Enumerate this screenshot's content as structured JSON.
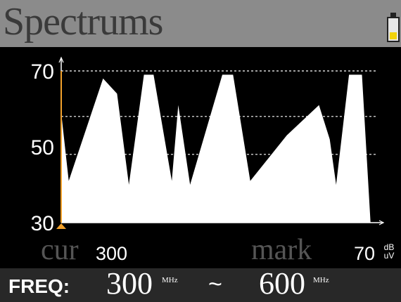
{
  "header": {
    "title": "Spectrums",
    "battery_icon": "battery-low-icon",
    "battery_level": 0.3
  },
  "chart_data": {
    "type": "area",
    "ylim": [
      30,
      70
    ],
    "yticks": [
      "70",
      "50",
      "30"
    ],
    "xlim": [
      300,
      600
    ],
    "grid": "dashed",
    "grid_levels": [
      70,
      58,
      48
    ],
    "marker_x": 300,
    "x": [
      300,
      307,
      339,
      352,
      363,
      377,
      386,
      403,
      409,
      420,
      450,
      460,
      476,
      510,
      540,
      550,
      556,
      568,
      580,
      588,
      595
    ],
    "y": [
      59,
      41,
      68,
      64,
      40,
      69,
      69,
      41,
      61,
      40,
      69,
      69,
      41,
      53,
      61,
      52,
      40,
      69,
      69,
      30,
      30
    ],
    "colors": {
      "fill": "#ffffff",
      "background": "#000000",
      "axis": "#ffffff",
      "marker": "#f2a12b"
    }
  },
  "status": {
    "cur_label": "cur",
    "cur_value": "300",
    "mark_label": "mark",
    "mark_value": "70",
    "mark_unit_top": "dB",
    "mark_unit_bottom": "uV"
  },
  "footer": {
    "freq_label": "FREQ:",
    "start_value": "300",
    "start_unit": "MHz",
    "separator": "~",
    "end_value": "600",
    "end_unit": "MHz"
  }
}
